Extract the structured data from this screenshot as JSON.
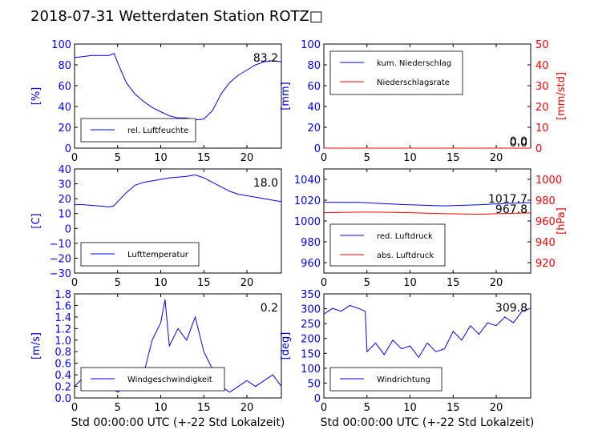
{
  "figure": {
    "title": "2018-07-31 Wetterdaten Station ROTZ□",
    "xlabel": "Std 00:00:00 UTC (+-22 Std Lokalzeit)"
  },
  "colors": {
    "primary": "#0000ff",
    "secondary": "#ff0000",
    "light": "#8080ff"
  },
  "chart_data": [
    {
      "type": "line",
      "panel": "humidity",
      "ylabel": "[%]",
      "xlim": [
        0,
        24
      ],
      "ylim": [
        0,
        100
      ],
      "x_ticks": [
        "0",
        "5",
        "10",
        "15",
        "20"
      ],
      "y_ticks": [
        "0",
        "20",
        "40",
        "60",
        "80",
        "100"
      ],
      "legend": [
        "rel. Luftfeuchte"
      ],
      "legend_position": "lower-left",
      "last_value_label": "83.2",
      "series": [
        {
          "name": "rel. Luftfeuchte",
          "color": "#0000ff",
          "x": [
            0,
            1,
            2,
            3,
            4,
            4.6,
            5,
            6,
            7,
            8,
            9,
            10,
            11,
            12,
            13,
            14,
            15,
            16,
            17,
            18,
            19,
            20,
            21,
            22,
            23,
            24
          ],
          "y": [
            87,
            88,
            89,
            89,
            89,
            91,
            82,
            63,
            52,
            45,
            39,
            35,
            31,
            29,
            29,
            27,
            28,
            36,
            52,
            63,
            70,
            75,
            80,
            83,
            84,
            83
          ]
        }
      ]
    },
    {
      "type": "line",
      "panel": "precipitation",
      "ylabel": "[mm]",
      "ylabel_right": "[mm/std]",
      "xlim": [
        0,
        24
      ],
      "ylim": [
        0,
        100
      ],
      "ylim_right": [
        0,
        50
      ],
      "x_ticks": [
        "0",
        "5",
        "10",
        "15",
        "20"
      ],
      "y_ticks": [
        "0",
        "20",
        "40",
        "60",
        "80",
        "100"
      ],
      "y_ticks_right": [
        "0",
        "10",
        "20",
        "30",
        "40",
        "50"
      ],
      "legend": [
        "kum. Niederschlag",
        "Niederschlagsrate"
      ],
      "legend_position": "upper-left",
      "last_value_labels": [
        "0.0",
        "0.0"
      ],
      "series": [
        {
          "name": "kum. Niederschlag",
          "color": "#0000ff",
          "x": [
            0,
            24
          ],
          "y": [
            0,
            0
          ]
        },
        {
          "name": "Niederschlagsrate",
          "color": "#ff0000",
          "x": [
            0,
            24
          ],
          "y": [
            0,
            0
          ]
        }
      ]
    },
    {
      "type": "line",
      "panel": "temperature",
      "ylabel": "[C]",
      "xlim": [
        0,
        24
      ],
      "ylim": [
        -30,
        40
      ],
      "x_ticks": [
        "0",
        "5",
        "10",
        "15",
        "20"
      ],
      "y_ticks": [
        "−30",
        "−20",
        "−10",
        "0",
        "10",
        "20",
        "30",
        "40"
      ],
      "legend": [
        "Lufttemperatur"
      ],
      "legend_position": "lower-left",
      "last_value_label": "18.0",
      "series": [
        {
          "name": "Lufttemperatur",
          "color": "#0000ff",
          "x": [
            0,
            1,
            2,
            3,
            4,
            4.5,
            5,
            6,
            7,
            8,
            9,
            10,
            11,
            12,
            13,
            14,
            15,
            16,
            17,
            18,
            19,
            20,
            21,
            22,
            23,
            24
          ],
          "y": [
            16,
            16,
            15.5,
            15,
            14.5,
            15,
            18,
            24,
            29,
            31,
            32,
            33,
            34,
            34.5,
            35,
            36,
            34,
            31,
            28,
            25,
            23,
            22,
            21,
            20,
            19,
            18
          ]
        }
      ]
    },
    {
      "type": "line",
      "panel": "pressure",
      "ylabel_right": "[hPa]",
      "xlim": [
        0,
        24
      ],
      "ylim": [
        950,
        1050
      ],
      "ylim_right": [
        910,
        1010
      ],
      "x_ticks": [
        "0",
        "5",
        "10",
        "15",
        "20"
      ],
      "y_ticks": [
        "960",
        "980",
        "1000",
        "1020",
        "1040"
      ],
      "y_ticks_right": [
        "920",
        "940",
        "960",
        "980",
        "1000"
      ],
      "legend": [
        "red. Luftdruck",
        "abs. Luftdruck"
      ],
      "legend_position": "lower-left",
      "last_value_labels": [
        "1017.7",
        "967.8"
      ],
      "series": [
        {
          "name": "red. Luftdruck",
          "color": "#0000ff",
          "x": [
            0,
            4,
            6,
            10,
            14,
            18,
            20,
            24
          ],
          "y": [
            1018,
            1018,
            1017,
            1015.5,
            1014.5,
            1015.5,
            1016.5,
            1017.7
          ]
        },
        {
          "name": "abs. Luftdruck",
          "color": "#ff0000",
          "x": [
            0,
            4,
            6,
            10,
            14,
            18,
            20,
            24
          ],
          "y": [
            968,
            968.5,
            968.5,
            968,
            967,
            966.5,
            967,
            967.8
          ]
        }
      ]
    },
    {
      "type": "line",
      "panel": "wind-speed",
      "ylabel": "[m/s]",
      "xlim": [
        0,
        24
      ],
      "ylim": [
        0,
        1.8
      ],
      "x_ticks": [
        "0",
        "5",
        "10",
        "15",
        "20"
      ],
      "y_ticks": [
        "0.0",
        "0.2",
        "0.4",
        "0.6",
        "0.8",
        "1.0",
        "1.2",
        "1.4",
        "1.6",
        "1.8"
      ],
      "legend": [
        "Windgeschwindigkeit"
      ],
      "legend_position": "lower-left",
      "last_value_label": "0.2",
      "series": [
        {
          "name": "Windgeschwindigkeit",
          "color": "#0000ff",
          "x": [
            0,
            1,
            2,
            3,
            4,
            5,
            6,
            7,
            8,
            9,
            10,
            10.5,
            11,
            12,
            13,
            14,
            15,
            16,
            17,
            18,
            19,
            20,
            21,
            22,
            23,
            24
          ],
          "y": [
            0.2,
            0.35,
            0.2,
            0.4,
            0.2,
            0.1,
            0.2,
            0.3,
            0.4,
            1.0,
            1.3,
            1.7,
            0.9,
            1.2,
            1.0,
            1.4,
            0.8,
            0.5,
            0.2,
            0.1,
            0.2,
            0.3,
            0.2,
            0.3,
            0.4,
            0.2
          ]
        }
      ]
    },
    {
      "type": "line",
      "panel": "wind-direction",
      "ylabel": "[deg]",
      "xlim": [
        0,
        24
      ],
      "ylim": [
        0,
        360
      ],
      "x_ticks": [
        "0",
        "5",
        "10",
        "15",
        "20"
      ],
      "y_ticks": [
        "0",
        "50",
        "100",
        "150",
        "200",
        "250",
        "300",
        "350"
      ],
      "legend": [
        "Windrichtung"
      ],
      "legend_position": "lower-left",
      "last_value_label": "309.8",
      "series": [
        {
          "name": "Windrichtung",
          "color": "#0000ff",
          "x": [
            0,
            1,
            2,
            3,
            4,
            4.8,
            5,
            6,
            7,
            8,
            9,
            10,
            11,
            12,
            13,
            14,
            15,
            16,
            17,
            18,
            19,
            20,
            21,
            22,
            23,
            24
          ],
          "y": [
            290,
            310,
            300,
            320,
            310,
            300,
            160,
            190,
            150,
            200,
            170,
            180,
            140,
            190,
            160,
            170,
            230,
            200,
            250,
            220,
            260,
            250,
            280,
            260,
            300,
            310
          ]
        }
      ]
    }
  ]
}
